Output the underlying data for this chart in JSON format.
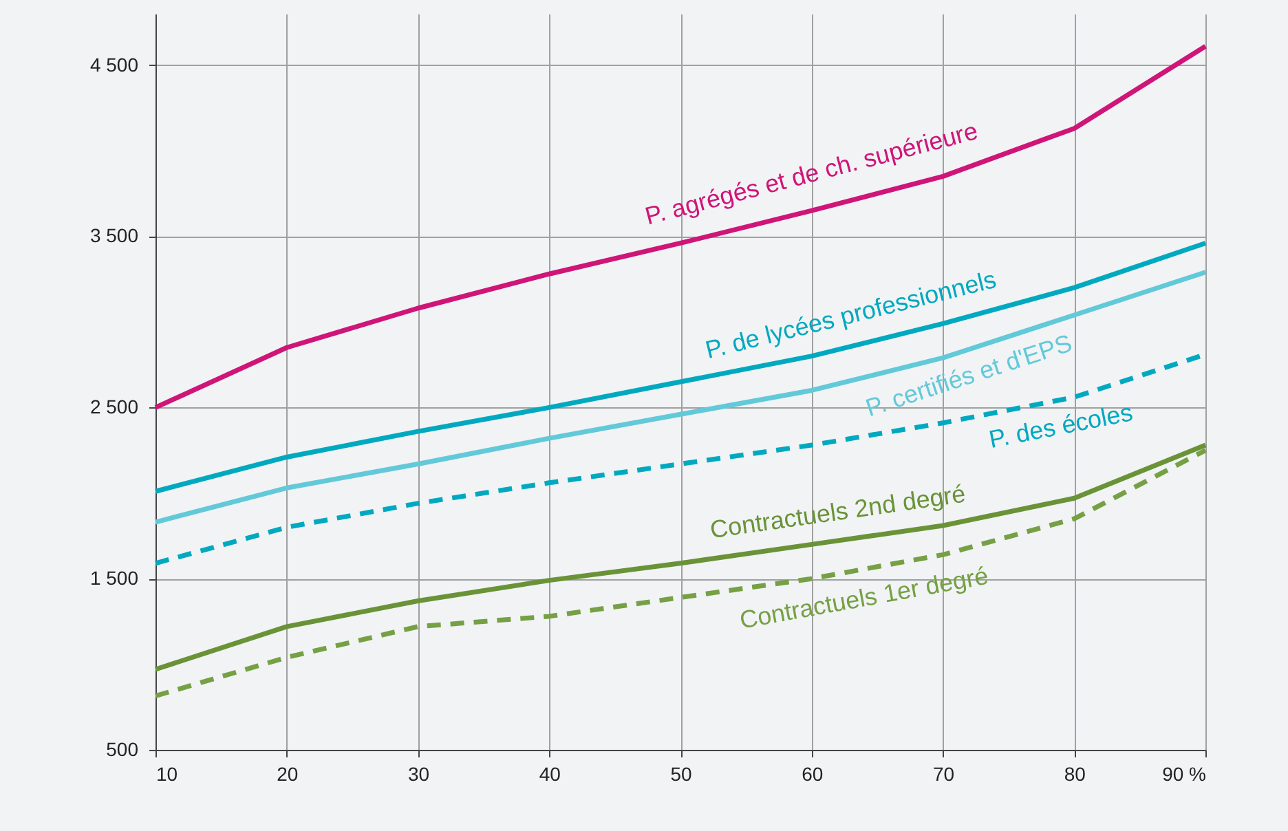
{
  "chart_data": {
    "type": "line",
    "x": [
      10,
      20,
      30,
      40,
      50,
      60,
      70,
      80,
      90
    ],
    "series": [
      {
        "name": "P. agrégés et de ch. supérieure",
        "color": "#cf1578",
        "line_style": "solid",
        "values": [
          2500,
          2850,
          3080,
          3280,
          3460,
          3650,
          3850,
          4130,
          4610
        ]
      },
      {
        "name": "P. de lycées professionnels",
        "color": "#00a9bf",
        "line_style": "solid",
        "values": [
          2010,
          2210,
          2360,
          2500,
          2650,
          2800,
          2990,
          3200,
          3460
        ]
      },
      {
        "name": "P. certifiés et d'EPS",
        "color": "#62c9d9",
        "line_style": "solid",
        "values": [
          1830,
          2030,
          2170,
          2320,
          2460,
          2600,
          2790,
          3040,
          3290
        ]
      },
      {
        "name": "P. des écoles",
        "color": "#00a9bf",
        "line_style": "dashed",
        "values": [
          1590,
          1800,
          1940,
          2060,
          2170,
          2280,
          2410,
          2560,
          2810
        ]
      },
      {
        "name": "Contractuels 2nd degré",
        "color": "#6a9337",
        "line_style": "solid",
        "values": [
          970,
          1220,
          1370,
          1490,
          1590,
          1700,
          1810,
          1970,
          2280
        ]
      },
      {
        "name": "Contractuels 1er degré",
        "color": "#76a044",
        "line_style": "dashed",
        "values": [
          815,
          1040,
          1220,
          1280,
          1390,
          1500,
          1640,
          1850,
          2250
        ]
      }
    ],
    "xlim": [
      10,
      90
    ],
    "xticks": [
      10,
      20,
      30,
      40,
      50,
      60,
      70,
      80,
      {
        "value": 90,
        "label": "90 %"
      }
    ],
    "ylim": [
      500,
      4800
    ],
    "yticks": [
      {
        "value": 500,
        "label": "500"
      },
      {
        "value": 1500,
        "label": "1 500"
      },
      {
        "value": 2500,
        "label": "2 500"
      },
      {
        "value": 3500,
        "label": "3 500"
      },
      {
        "value": 4500,
        "label": "4 500"
      }
    ],
    "grid": true
  }
}
